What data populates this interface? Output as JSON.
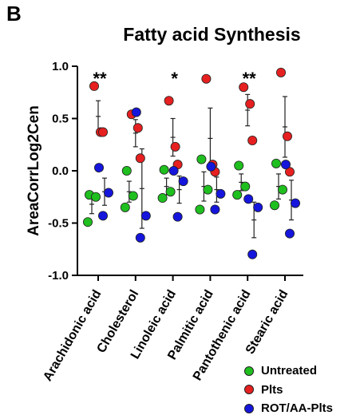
{
  "panel_label": "B",
  "chart_data": {
    "type": "scatter",
    "title": "Fatty acid Synthesis",
    "xlabel": "",
    "ylabel": "AreaCorrLog2Cen",
    "ylim": [
      -1.0,
      1.0
    ],
    "yticks": [
      -1.0,
      -0.5,
      0.0,
      0.5,
      1.0
    ],
    "ytick_labels": [
      "-1.0",
      "-0.5",
      "0.0",
      "0.5",
      "1.0"
    ],
    "grid": false,
    "legend_position": "bottom-right",
    "categories": [
      "Arachidonic acid",
      "Cholesterol",
      "Linoleic acid",
      "Palmitic acid",
      "Pantothenic acid",
      "Stearic acid"
    ],
    "significance": [
      "**",
      "",
      "*",
      "",
      "**",
      ""
    ],
    "series": [
      {
        "name": "Untreated",
        "color": "#1fbf1f",
        "values": [
          [
            -0.23,
            -0.25,
            -0.49
          ],
          [
            0.0,
            -0.24,
            -0.35
          ],
          [
            0.01,
            -0.2,
            -0.26
          ],
          [
            0.11,
            -0.18,
            -0.37
          ],
          [
            0.05,
            -0.15,
            -0.23
          ],
          [
            0.07,
            -0.18,
            -0.33
          ]
        ],
        "mean": [
          -0.32,
          -0.2,
          -0.15,
          -0.15,
          -0.11,
          -0.15
        ],
        "error": [
          0.09,
          0.1,
          0.08,
          0.14,
          0.08,
          0.12
        ]
      },
      {
        "name": "Plts",
        "color": "#e62020",
        "values": [
          [
            0.81,
            0.37,
            0.37
          ],
          [
            0.54,
            0.41,
            0.12
          ],
          [
            0.67,
            0.23,
            0.06
          ],
          [
            0.88,
            0.06,
            -0.01
          ],
          [
            0.8,
            0.64,
            0.29
          ],
          [
            0.94,
            0.33,
            -0.01
          ]
        ],
        "mean": [
          0.52,
          0.36,
          0.32,
          0.31,
          0.58,
          0.42
        ],
        "error": [
          0.15,
          0.13,
          0.18,
          0.29,
          0.15,
          0.29
        ]
      },
      {
        "name": "ROT/AA-Plts",
        "color": "#1515dc",
        "values": [
          [
            0.03,
            -0.21,
            -0.43
          ],
          [
            0.56,
            -0.43,
            -0.64
          ],
          [
            0.0,
            -0.1,
            -0.44
          ],
          [
            0.04,
            -0.22,
            -0.37
          ],
          [
            -0.27,
            -0.35,
            -0.8
          ],
          [
            0.06,
            -0.31,
            -0.6
          ]
        ],
        "mean": [
          -0.2,
          -0.17,
          -0.18,
          -0.18,
          -0.47,
          -0.28
        ],
        "error": [
          0.13,
          0.38,
          0.13,
          0.12,
          0.17,
          0.19
        ]
      }
    ]
  }
}
